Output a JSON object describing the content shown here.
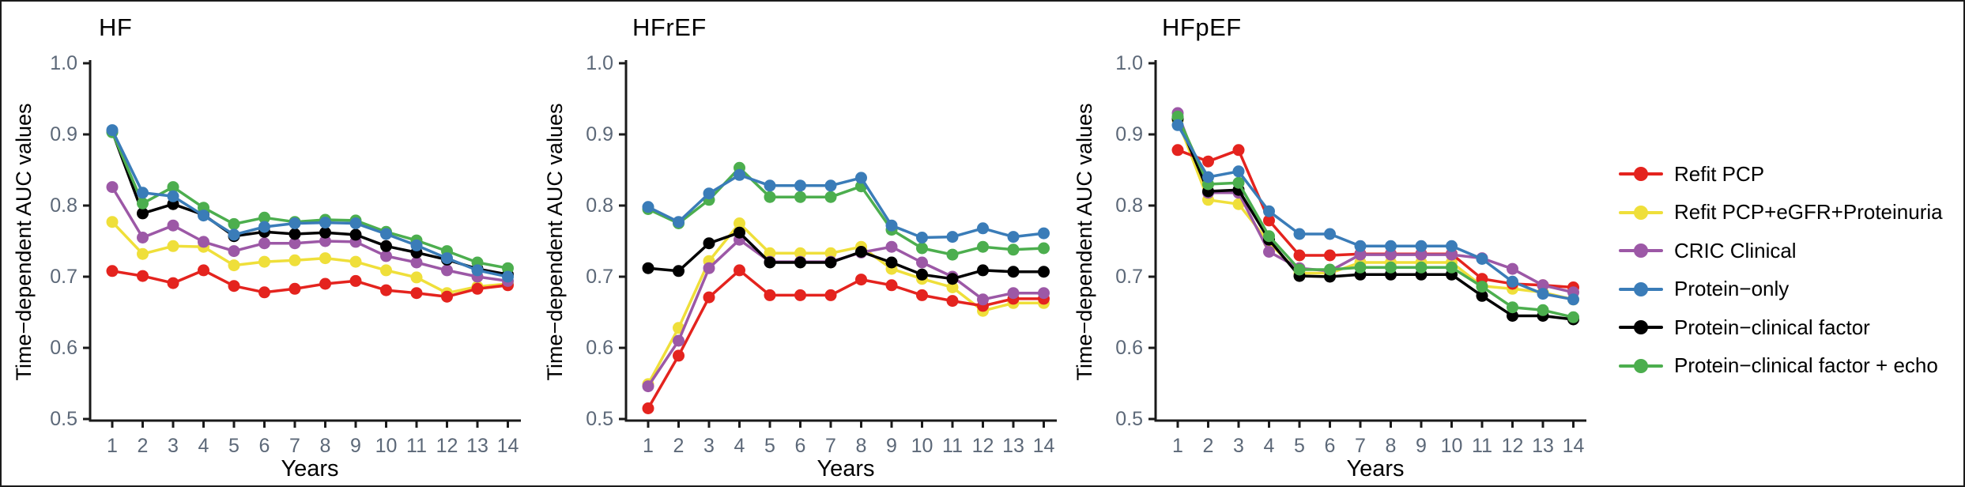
{
  "figure": {
    "background": "#ffffff",
    "border_color": "#1b1b1b",
    "axis_color": "#1a1a1a",
    "tick_label_color": "#5c6878"
  },
  "axis": {
    "y_ticks": [
      "1.0",
      "0.9",
      "0.8",
      "0.7",
      "0.6",
      "0.5"
    ],
    "x_ticks": [
      "1",
      "2",
      "3",
      "4",
      "5",
      "6",
      "7",
      "8",
      "9",
      "10",
      "11",
      "12",
      "13",
      "14"
    ]
  },
  "legend": {
    "items": [
      {
        "label": "Refit PCP",
        "color": "#e4231e"
      },
      {
        "label": "Refit PCP+eGFR+Proteinuria",
        "color": "#efdf3a"
      },
      {
        "label": "CRIC Clinical",
        "color": "#9c58a6"
      },
      {
        "label": "Protein−only",
        "color": "#3a7cb8"
      },
      {
        "label": "Protein−clinical factor",
        "color": "#000000"
      },
      {
        "label": "Protein−clinical factor + echo",
        "color": "#4cae4e"
      }
    ]
  },
  "chart_data": [
    {
      "type": "line",
      "title": "HF",
      "xlabel": "Years",
      "ylabel": "Time−dependent AUC values",
      "x": [
        1,
        2,
        3,
        4,
        5,
        6,
        7,
        8,
        9,
        10,
        11,
        12,
        13,
        14
      ],
      "ylim": [
        0.5,
        1.0
      ],
      "grid": false,
      "series": [
        {
          "name": "Refit PCP",
          "color": "#e4231e",
          "values": [
            0.708,
            0.701,
            0.691,
            0.709,
            0.687,
            0.678,
            0.683,
            0.69,
            0.694,
            0.681,
            0.677,
            0.672,
            0.683,
            0.688
          ]
        },
        {
          "name": "Refit PCP+eGFR+Proteinuria",
          "color": "#efdf3a",
          "values": [
            0.777,
            0.732,
            0.743,
            0.742,
            0.716,
            0.721,
            0.723,
            0.726,
            0.721,
            0.709,
            0.699,
            0.677,
            0.686,
            0.69
          ]
        },
        {
          "name": "CRIC Clinical",
          "color": "#9c58a6",
          "values": [
            0.826,
            0.755,
            0.772,
            0.749,
            0.736,
            0.747,
            0.747,
            0.75,
            0.749,
            0.729,
            0.72,
            0.709,
            0.7,
            0.694
          ]
        },
        {
          "name": "Protein−only",
          "color": "#3a7cb8",
          "values": [
            0.906,
            0.818,
            0.813,
            0.786,
            0.759,
            0.77,
            0.775,
            0.776,
            0.775,
            0.76,
            0.744,
            0.726,
            0.709,
            0.7
          ]
        },
        {
          "name": "Protein−clinical factor",
          "color": "#000000",
          "values": [
            0.904,
            0.789,
            0.802,
            0.787,
            0.757,
            0.763,
            0.76,
            0.762,
            0.759,
            0.743,
            0.734,
            0.724,
            0.711,
            0.703
          ]
        },
        {
          "name": "Protein−clinical factor + echo",
          "color": "#4cae4e",
          "values": [
            0.903,
            0.803,
            0.826,
            0.797,
            0.774,
            0.783,
            0.777,
            0.78,
            0.779,
            0.763,
            0.751,
            0.736,
            0.72,
            0.712
          ]
        }
      ]
    },
    {
      "type": "line",
      "title": "HFrEF",
      "xlabel": "Years",
      "ylabel": "Time−dependent AUC values",
      "x": [
        1,
        2,
        3,
        4,
        5,
        6,
        7,
        8,
        9,
        10,
        11,
        12,
        13,
        14
      ],
      "ylim": [
        0.5,
        1.0
      ],
      "grid": false,
      "series": [
        {
          "name": "Refit PCP",
          "color": "#e4231e",
          "values": [
            0.515,
            0.589,
            0.671,
            0.709,
            0.674,
            0.674,
            0.674,
            0.696,
            0.688,
            0.674,
            0.666,
            0.659,
            0.669,
            0.669
          ]
        },
        {
          "name": "Refit PCP+eGFR+Proteinuria",
          "color": "#efdf3a",
          "values": [
            0.549,
            0.628,
            0.722,
            0.775,
            0.733,
            0.733,
            0.733,
            0.742,
            0.711,
            0.697,
            0.685,
            0.652,
            0.663,
            0.663
          ]
        },
        {
          "name": "CRIC Clinical",
          "color": "#9c58a6",
          "values": [
            0.546,
            0.61,
            0.712,
            0.752,
            0.721,
            0.721,
            0.721,
            0.734,
            0.742,
            0.72,
            0.7,
            0.668,
            0.677,
            0.677
          ]
        },
        {
          "name": "Protein−only",
          "color": "#3a7cb8",
          "values": [
            0.798,
            0.777,
            0.817,
            0.843,
            0.828,
            0.828,
            0.828,
            0.839,
            0.772,
            0.755,
            0.756,
            0.768,
            0.756,
            0.761
          ]
        },
        {
          "name": "Protein−clinical factor",
          "color": "#000000",
          "values": [
            0.712,
            0.708,
            0.747,
            0.762,
            0.72,
            0.72,
            0.72,
            0.735,
            0.72,
            0.703,
            0.697,
            0.709,
            0.707,
            0.707
          ]
        },
        {
          "name": "Protein−clinical factor + echo",
          "color": "#4cae4e",
          "values": [
            0.795,
            0.775,
            0.808,
            0.853,
            0.812,
            0.812,
            0.812,
            0.827,
            0.766,
            0.74,
            0.731,
            0.742,
            0.738,
            0.74
          ]
        }
      ]
    },
    {
      "type": "line",
      "title": "HFpEF",
      "xlabel": "Years",
      "ylabel": "Time−dependent AUC values",
      "x": [
        1,
        2,
        3,
        4,
        5,
        6,
        7,
        8,
        9,
        10,
        11,
        12,
        13,
        14
      ],
      "ylim": [
        0.5,
        1.0
      ],
      "grid": false,
      "series": [
        {
          "name": "Refit PCP",
          "color": "#e4231e",
          "values": [
            0.878,
            0.862,
            0.878,
            0.779,
            0.73,
            0.73,
            0.732,
            0.732,
            0.732,
            0.732,
            0.697,
            0.69,
            0.688,
            0.685
          ]
        },
        {
          "name": "Refit PCP+eGFR+Proteinuria",
          "color": "#efdf3a",
          "values": [
            0.92,
            0.808,
            0.802,
            0.748,
            0.705,
            0.705,
            0.72,
            0.72,
            0.72,
            0.72,
            0.687,
            0.683,
            0.678,
            0.668
          ]
        },
        {
          "name": "CRIC Clinical",
          "color": "#9c58a6",
          "values": [
            0.93,
            0.818,
            0.818,
            0.735,
            0.712,
            0.708,
            0.731,
            0.731,
            0.731,
            0.731,
            0.726,
            0.711,
            0.688,
            0.678
          ]
        },
        {
          "name": "Protein−only",
          "color": "#3a7cb8",
          "values": [
            0.913,
            0.84,
            0.848,
            0.792,
            0.76,
            0.76,
            0.743,
            0.743,
            0.743,
            0.743,
            0.725,
            0.693,
            0.676,
            0.668
          ]
        },
        {
          "name": "Protein−clinical factor",
          "color": "#000000",
          "values": [
            0.922,
            0.82,
            0.822,
            0.752,
            0.701,
            0.7,
            0.703,
            0.703,
            0.703,
            0.703,
            0.673,
            0.645,
            0.645,
            0.64
          ]
        },
        {
          "name": "Protein−clinical factor + echo",
          "color": "#4cae4e",
          "values": [
            0.925,
            0.83,
            0.832,
            0.757,
            0.71,
            0.71,
            0.713,
            0.713,
            0.713,
            0.713,
            0.686,
            0.657,
            0.653,
            0.643
          ]
        }
      ]
    }
  ]
}
